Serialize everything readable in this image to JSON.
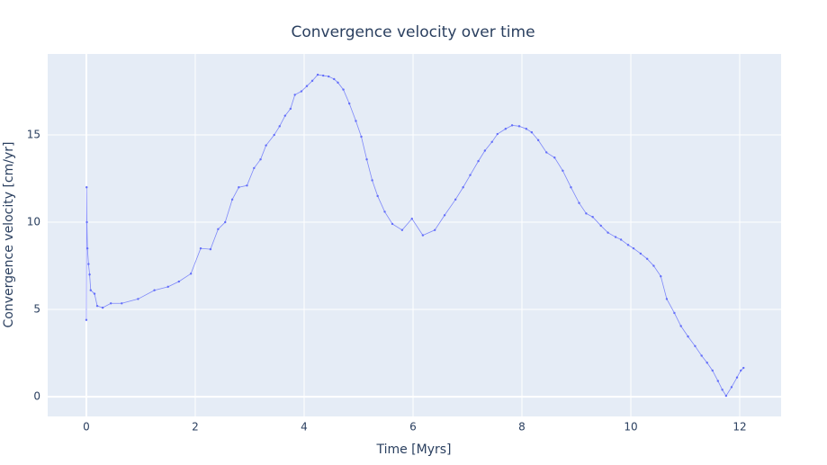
{
  "chart_data": {
    "type": "line",
    "title": "Convergence velocity over time",
    "x_label": "Time [Myrs]",
    "y_label": "Convergence velocity [cm/yr]",
    "x": [
      0,
      0.005,
      0.01,
      0.02,
      0.04,
      0.06,
      0.08,
      0.15,
      0.2,
      0.3,
      0.45,
      0.65,
      0.95,
      1.25,
      1.5,
      1.7,
      1.92,
      2.1,
      2.28,
      2.42,
      2.55,
      2.68,
      2.8,
      2.95,
      3.08,
      3.2,
      3.3,
      3.45,
      3.55,
      3.65,
      3.75,
      3.83,
      3.95,
      4.05,
      4.15,
      4.25,
      4.35,
      4.45,
      4.55,
      4.62,
      4.72,
      4.83,
      4.95,
      5.05,
      5.15,
      5.25,
      5.35,
      5.48,
      5.62,
      5.8,
      5.98,
      6.18,
      6.4,
      6.58,
      6.78,
      6.92,
      7.05,
      7.2,
      7.32,
      7.45,
      7.55,
      7.7,
      7.82,
      7.95,
      8.08,
      8.18,
      8.3,
      8.45,
      8.6,
      8.75,
      8.9,
      9.05,
      9.18,
      9.3,
      9.45,
      9.58,
      9.72,
      9.82,
      9.95,
      10.05,
      10.18,
      10.3,
      10.42,
      10.55,
      10.66,
      10.8,
      10.92,
      11.05,
      11.18,
      11.3,
      11.4,
      11.5,
      11.6,
      11.68,
      11.75,
      11.85,
      11.95,
      12.02,
      12.07
    ],
    "series": [
      {
        "name": "Convergence velocity",
        "color": "#636efa",
        "values": [
          4.4,
          12,
          10,
          8.5,
          7.6,
          7,
          6.1,
          5.9,
          5.2,
          5.1,
          5.35,
          5.35,
          5.6,
          6.1,
          6.3,
          6.6,
          7.05,
          8.5,
          8.45,
          9.6,
          10,
          11.3,
          12,
          12.1,
          13.1,
          13.6,
          14.4,
          15,
          15.5,
          16.1,
          16.5,
          17.3,
          17.5,
          17.8,
          18.1,
          18.45,
          18.4,
          18.35,
          18.2,
          18,
          17.6,
          16.8,
          15.8,
          14.9,
          13.6,
          12.4,
          11.5,
          10.6,
          9.9,
          9.55,
          10.2,
          9.25,
          9.55,
          10.4,
          11.3,
          12,
          12.7,
          13.5,
          14.1,
          14.6,
          15.05,
          15.35,
          15.55,
          15.5,
          15.35,
          15.15,
          14.7,
          14,
          13.7,
          12.95,
          12,
          11.1,
          10.5,
          10.3,
          9.8,
          9.4,
          9.15,
          9,
          8.7,
          8.5,
          8.2,
          7.9,
          7.5,
          6.9,
          5.6,
          4.8,
          4.05,
          3.45,
          2.9,
          2.35,
          1.95,
          1.5,
          0.9,
          0.4,
          0.05,
          0.55,
          1.1,
          1.5,
          1.65
        ]
      }
    ],
    "xlim": [
      -0.71,
      12.76
    ],
    "ylim": [
      -1.13,
      19.64
    ],
    "xticks": [
      0,
      2,
      4,
      6,
      8,
      10,
      12
    ],
    "yticks": [
      0,
      5,
      10,
      15
    ],
    "grid": true
  }
}
